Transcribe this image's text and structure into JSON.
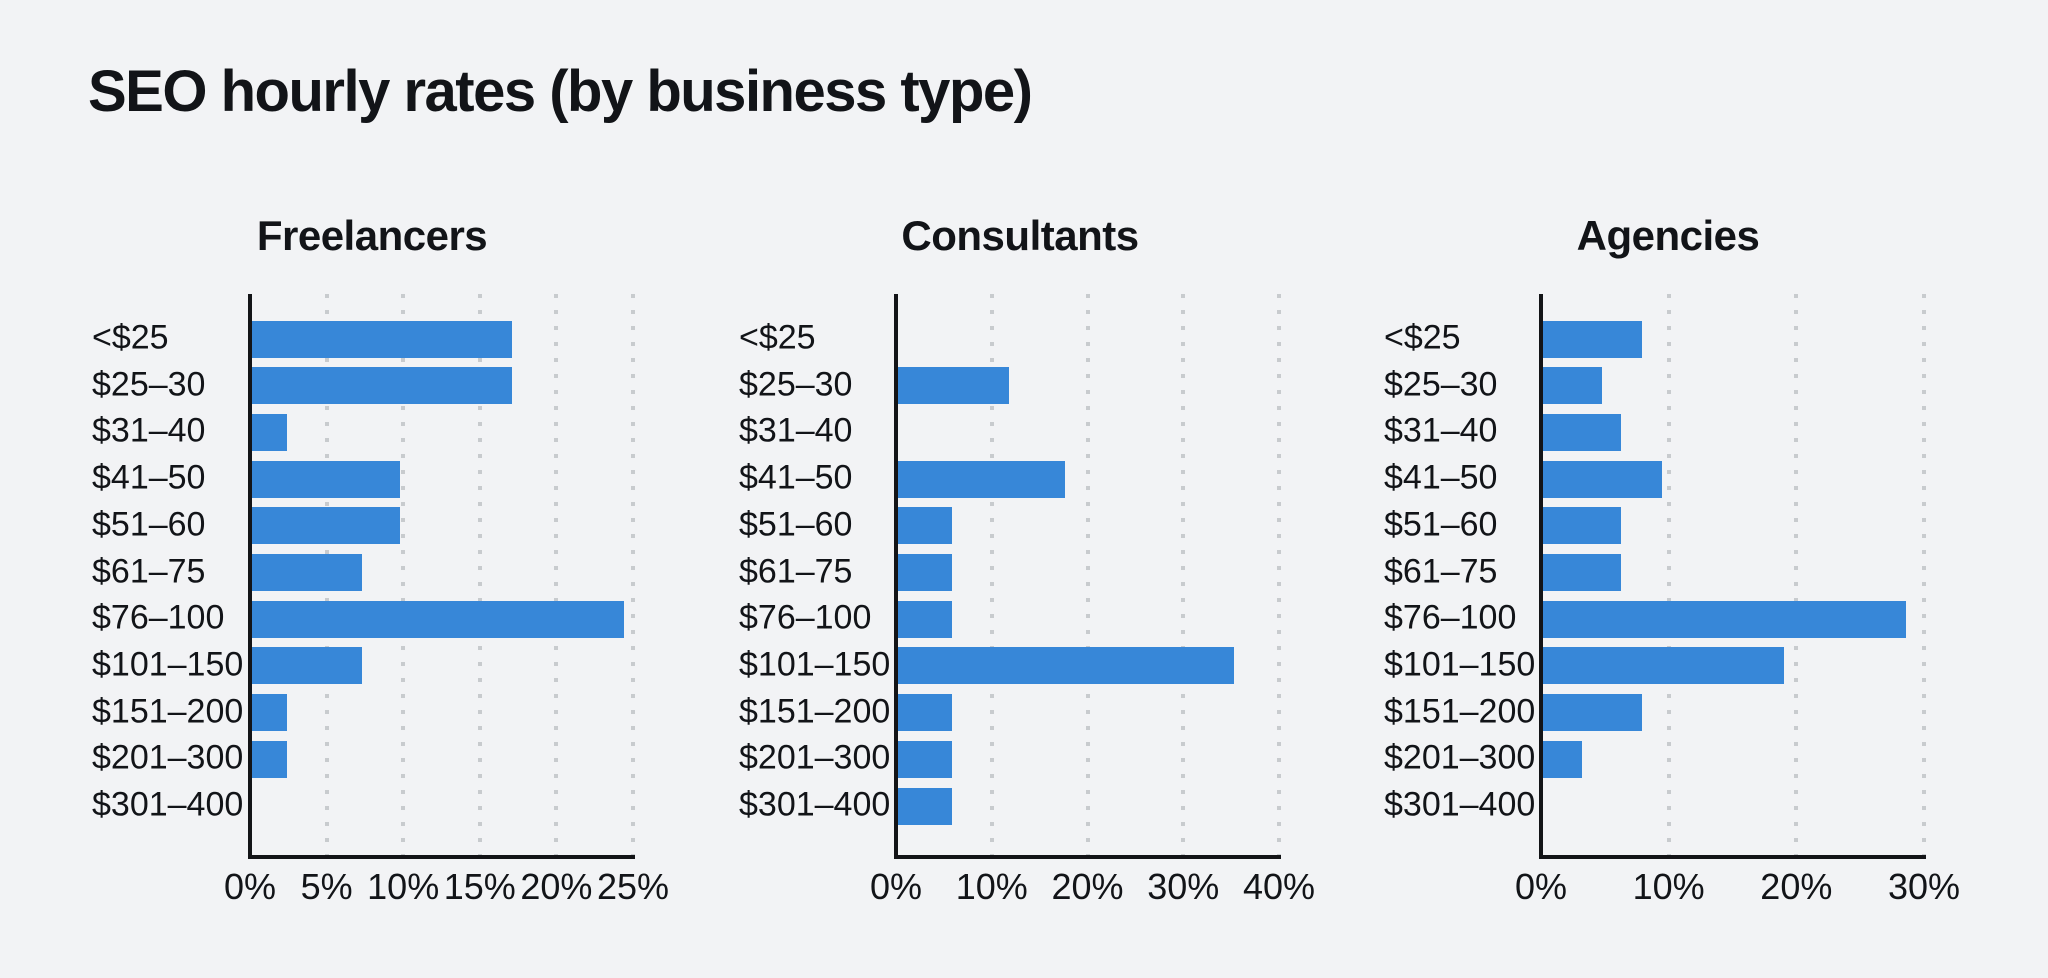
{
  "title": "SEO hourly rates (by business type)",
  "colors": {
    "background": "#f2f3f5",
    "bar": "#3787d8",
    "axis": "#131417",
    "grid": "#c8cbce",
    "text": "#121418"
  },
  "chart_data": [
    {
      "type": "bar",
      "orientation": "horizontal",
      "title": "Freelancers",
      "categories": [
        "<$25",
        "$25–30",
        "$31–40",
        "$41–50",
        "$51–60",
        "$61–75",
        "$76–100",
        "$101–150",
        "$151–200",
        "$201–300",
        "$301–400"
      ],
      "values": [
        17.1,
        17.1,
        2.4,
        9.8,
        9.8,
        7.3,
        24.4,
        7.3,
        2.4,
        2.4,
        0
      ],
      "unit": "%",
      "xlim": [
        0,
        25
      ],
      "xticks": [
        0,
        5,
        10,
        15,
        20,
        25
      ],
      "xtick_labels": [
        "0%",
        "5%",
        "10%",
        "15%",
        "20%",
        "25%"
      ],
      "grid": "dotted-vertical",
      "legend": null
    },
    {
      "type": "bar",
      "orientation": "horizontal",
      "title": "Consultants",
      "categories": [
        "<$25",
        "$25–30",
        "$31–40",
        "$41–50",
        "$51–60",
        "$61–75",
        "$76–100",
        "$101–150",
        "$151–200",
        "$201–300",
        "$301–400"
      ],
      "values": [
        0,
        11.8,
        0,
        17.6,
        5.9,
        5.9,
        5.9,
        35.3,
        5.9,
        5.9,
        5.9
      ],
      "unit": "%",
      "xlim": [
        0,
        40
      ],
      "xticks": [
        0,
        10,
        20,
        30,
        40
      ],
      "xtick_labels": [
        "0%",
        "10%",
        "20%",
        "30%",
        "40%"
      ],
      "grid": "dotted-vertical",
      "legend": null
    },
    {
      "type": "bar",
      "orientation": "horizontal",
      "title": "Agencies",
      "categories": [
        "<$25",
        "$25–30",
        "$31–40",
        "$41–50",
        "$51–60",
        "$61–75",
        "$76–100",
        "$101–150",
        "$151–200",
        "$201–300",
        "$301–400"
      ],
      "values": [
        7.9,
        4.8,
        6.3,
        9.5,
        6.3,
        6.3,
        28.6,
        19.0,
        7.9,
        3.2,
        0
      ],
      "unit": "%",
      "xlim": [
        0,
        30
      ],
      "xticks": [
        0,
        10,
        20,
        30
      ],
      "xtick_labels": [
        "0%",
        "10%",
        "20%",
        "30%"
      ],
      "grid": "dotted-vertical",
      "legend": null
    }
  ]
}
